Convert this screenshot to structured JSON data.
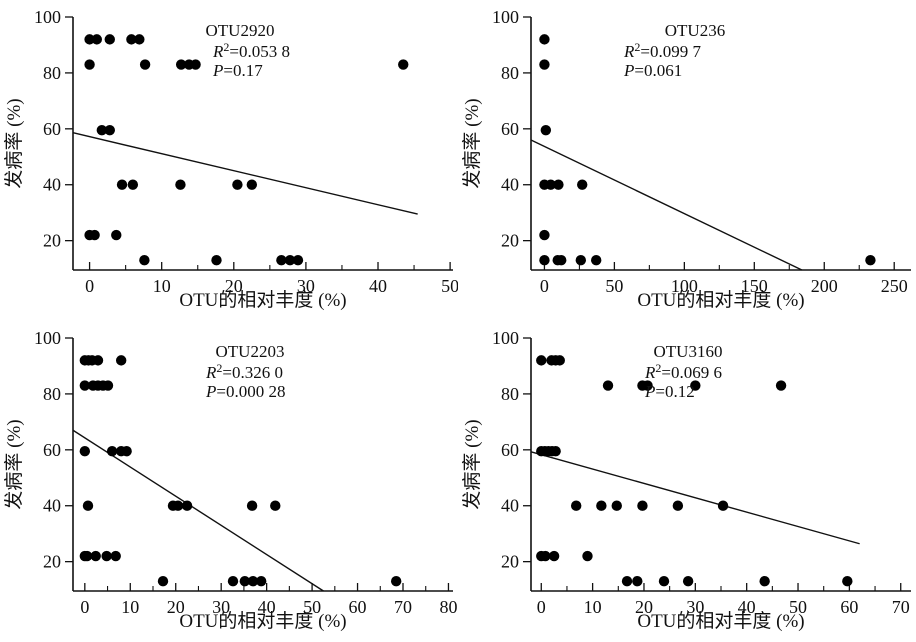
{
  "figure": {
    "background": "#ffffff",
    "ink_color": "#111111",
    "marker_color": "#000000"
  },
  "chart_data": [
    {
      "type": "scatter",
      "title": "OTU2920",
      "r2_prefix": "R",
      "r2_sup": "2",
      "r2_eq": "=",
      "r2_value": "0.053 8",
      "p_prefix": "P",
      "p_eq": "=",
      "p_value": "0.17",
      "xlabel": "OTU的相对丰度 (%)",
      "ylabel": "发病率 (%)",
      "xlim": [
        -2.3,
        50.4
      ],
      "ylim": [
        9.5,
        100
      ],
      "xticks": [
        0,
        10,
        20,
        30,
        40,
        50
      ],
      "xminor_step": 5,
      "yticks": [
        20,
        40,
        60,
        80,
        100
      ],
      "grid": false,
      "legend": "none",
      "trend": {
        "x1": -2.3,
        "y1": 58.6,
        "x2": 45.5,
        "y2": 29.5
      },
      "points": [
        [
          0,
          92
        ],
        [
          1,
          92
        ],
        [
          2.8,
          92
        ],
        [
          5.8,
          92
        ],
        [
          6.9,
          92
        ],
        [
          0,
          83
        ],
        [
          7.7,
          83
        ],
        [
          12.7,
          83
        ],
        [
          13.8,
          83
        ],
        [
          14.7,
          83
        ],
        [
          43.5,
          83
        ],
        [
          1.7,
          59.5
        ],
        [
          2.8,
          59.5
        ],
        [
          4.5,
          40
        ],
        [
          6,
          40
        ],
        [
          12.6,
          40
        ],
        [
          20.5,
          40
        ],
        [
          22.5,
          40
        ],
        [
          0,
          22
        ],
        [
          0.7,
          22
        ],
        [
          3.7,
          22
        ],
        [
          7.6,
          13
        ],
        [
          17.6,
          13
        ],
        [
          26.6,
          13
        ],
        [
          27.8,
          13
        ],
        [
          28.9,
          13
        ]
      ],
      "layout": {
        "title_cx": 240,
        "ann_left": 213
      }
    },
    {
      "type": "scatter",
      "title": "OTU236",
      "r2_prefix": "R",
      "r2_sup": "2",
      "r2_eq": "=",
      "r2_value": "0.099 7",
      "p_prefix": "P",
      "p_eq": "=",
      "p_value": "0.061",
      "xlabel": "OTU的相对丰度 (%)",
      "ylabel": "发病率 (%)",
      "xlim": [
        -9.6,
        262
      ],
      "ylim": [
        9.5,
        100
      ],
      "xticks": [
        0,
        50,
        100,
        150,
        200,
        250
      ],
      "xminor_step": 25,
      "yticks": [
        20,
        40,
        60,
        80,
        100
      ],
      "grid": false,
      "legend": "none",
      "trend": {
        "x1": -9.6,
        "y1": 56,
        "x2": 184,
        "y2": 9.5
      },
      "points": [
        [
          0,
          92
        ],
        [
          0,
          83
        ],
        [
          1,
          59.5
        ],
        [
          0,
          40
        ],
        [
          4.5,
          40
        ],
        [
          10,
          40
        ],
        [
          27,
          40
        ],
        [
          0,
          22
        ],
        [
          0,
          13
        ],
        [
          9.5,
          13
        ],
        [
          12,
          13
        ],
        [
          26,
          13
        ],
        [
          37,
          13
        ],
        [
          233,
          13
        ]
      ],
      "layout": {
        "title_cx": 237,
        "ann_left": 166
      }
    },
    {
      "type": "scatter",
      "title": "OTU2203",
      "r2_prefix": "R",
      "r2_sup": "2",
      "r2_eq": "=",
      "r2_value": "0.326 0",
      "p_prefix": "P",
      "p_eq": "=",
      "p_value": "0.000 28",
      "xlabel": "OTU的相对丰度 (%)",
      "ylabel": "发病率 (%)",
      "xlim": [
        -2.6,
        81
      ],
      "ylim": [
        9.5,
        100
      ],
      "xticks": [
        0,
        10,
        20,
        30,
        40,
        50,
        60,
        70,
        80
      ],
      "xminor_step": 5,
      "yticks": [
        20,
        40,
        60,
        80,
        100
      ],
      "grid": false,
      "legend": "none",
      "trend": {
        "x1": -2.6,
        "y1": 67,
        "x2": 52.5,
        "y2": 9.5
      },
      "points": [
        [
          0,
          92
        ],
        [
          0.8,
          92
        ],
        [
          1.6,
          92
        ],
        [
          2.9,
          92
        ],
        [
          8,
          92
        ],
        [
          0,
          83
        ],
        [
          1.8,
          83
        ],
        [
          2.9,
          83
        ],
        [
          4,
          83
        ],
        [
          5.1,
          83
        ],
        [
          0,
          59.5
        ],
        [
          6,
          59.5
        ],
        [
          8,
          59.5
        ],
        [
          9.2,
          59.5
        ],
        [
          0.7,
          40
        ],
        [
          19.4,
          40
        ],
        [
          20.5,
          40
        ],
        [
          22.5,
          40
        ],
        [
          36.8,
          40
        ],
        [
          41.9,
          40
        ],
        [
          0,
          22
        ],
        [
          0.5,
          22
        ],
        [
          2.4,
          22
        ],
        [
          4.8,
          22
        ],
        [
          6.8,
          22
        ],
        [
          17.2,
          13
        ],
        [
          32.6,
          13
        ],
        [
          35.2,
          13
        ],
        [
          37,
          13
        ],
        [
          38.8,
          13
        ],
        [
          68.5,
          13
        ]
      ],
      "layout": {
        "title_cx": 250,
        "ann_left": 206
      }
    },
    {
      "type": "scatter",
      "title": "OTU3160",
      "r2_prefix": "R",
      "r2_sup": "2",
      "r2_eq": "=",
      "r2_value": "0.069 6",
      "p_prefix": "P",
      "p_eq": "=",
      "p_value": "0.12",
      "xlabel": "OTU的相对丰度 (%)",
      "ylabel": "发病率 (%)",
      "xlim": [
        -2,
        72
      ],
      "ylim": [
        9.5,
        100
      ],
      "xticks": [
        0,
        10,
        20,
        30,
        40,
        50,
        60,
        70
      ],
      "xminor_step": 5,
      "yticks": [
        20,
        40,
        60,
        80,
        100
      ],
      "grid": false,
      "legend": "none",
      "trend": {
        "x1": -2,
        "y1": 59.3,
        "x2": 62,
        "y2": 26.4
      },
      "points": [
        [
          0,
          92
        ],
        [
          2,
          92
        ],
        [
          2.8,
          92
        ],
        [
          3.6,
          92
        ],
        [
          13,
          83
        ],
        [
          19.7,
          83
        ],
        [
          20.7,
          83
        ],
        [
          30,
          83
        ],
        [
          46.7,
          83
        ],
        [
          0,
          59.5
        ],
        [
          0.7,
          59.5
        ],
        [
          1.4,
          59.5
        ],
        [
          2.1,
          59.5
        ],
        [
          2.8,
          59.5
        ],
        [
          6.8,
          40
        ],
        [
          11.7,
          40
        ],
        [
          14.7,
          40
        ],
        [
          19.7,
          40
        ],
        [
          26.6,
          40
        ],
        [
          35.4,
          40
        ],
        [
          0,
          22
        ],
        [
          0.8,
          22
        ],
        [
          2.5,
          22
        ],
        [
          9,
          22
        ],
        [
          16.7,
          13
        ],
        [
          18.7,
          13
        ],
        [
          23.9,
          13
        ],
        [
          28.6,
          13
        ],
        [
          43.5,
          13
        ],
        [
          59.6,
          13
        ]
      ],
      "layout": {
        "title_cx": 230,
        "ann_left": 187
      }
    }
  ]
}
